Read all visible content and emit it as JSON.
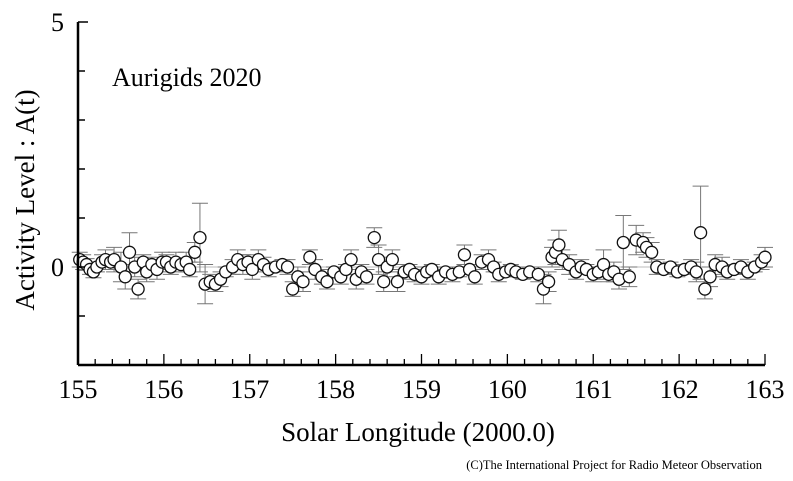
{
  "chart_data": {
    "type": "scatter",
    "title": "Aurigids 2020",
    "xlabel": "Solar Longitude (2000.0)",
    "ylabel": "Activity Level : A(t)",
    "credit": "(C)The International Project for Radio Meteor Observation",
    "xlim": [
      155,
      163
    ],
    "ylim": [
      -2,
      5
    ],
    "x_ticks": [
      "155",
      "156",
      "157",
      "158",
      "159",
      "160",
      "161",
      "162",
      "163"
    ],
    "y_tick_labels": [
      {
        "value": 5,
        "label": "5"
      },
      {
        "value": 0,
        "label": "0"
      }
    ],
    "grid": false,
    "error_bars": true,
    "marker": "open-circle",
    "colors": {
      "marker_stroke": "#111111",
      "marker_fill": "#ffffff",
      "error_bar": "#777777",
      "axis": "#000000"
    },
    "points": [
      [
        155.02,
        0.15,
        0.15
      ],
      [
        155.06,
        0.1,
        0.15
      ],
      [
        155.1,
        0.05,
        0.12
      ],
      [
        155.14,
        -0.05,
        0.1
      ],
      [
        155.18,
        -0.1,
        0.12
      ],
      [
        155.22,
        0.0,
        0.1
      ],
      [
        155.28,
        0.1,
        0.15
      ],
      [
        155.32,
        0.15,
        0.2
      ],
      [
        155.38,
        0.1,
        0.15
      ],
      [
        155.42,
        0.15,
        0.25
      ],
      [
        155.5,
        0.0,
        0.3
      ],
      [
        155.55,
        -0.2,
        0.25
      ],
      [
        155.6,
        0.3,
        0.4
      ],
      [
        155.66,
        0.0,
        0.2
      ],
      [
        155.7,
        -0.45,
        0.2
      ],
      [
        155.76,
        0.1,
        0.15
      ],
      [
        155.8,
        -0.1,
        0.2
      ],
      [
        155.86,
        0.05,
        0.15
      ],
      [
        155.92,
        -0.05,
        0.2
      ],
      [
        155.98,
        0.1,
        0.2
      ],
      [
        156.03,
        0.1,
        0.15
      ],
      [
        156.08,
        0.0,
        0.15
      ],
      [
        156.14,
        0.1,
        0.2
      ],
      [
        156.2,
        0.05,
        0.1
      ],
      [
        156.26,
        0.1,
        0.2
      ],
      [
        156.3,
        -0.05,
        0.15
      ],
      [
        156.36,
        0.3,
        0.2
      ],
      [
        156.42,
        0.6,
        0.7
      ],
      [
        156.48,
        -0.35,
        0.4
      ],
      [
        156.54,
        -0.3,
        0.15
      ],
      [
        156.6,
        -0.35,
        0.15
      ],
      [
        156.66,
        -0.25,
        0.15
      ],
      [
        156.72,
        -0.1,
        0.1
      ],
      [
        156.8,
        0.0,
        0.15
      ],
      [
        156.86,
        0.15,
        0.2
      ],
      [
        156.92,
        0.05,
        0.2
      ],
      [
        156.98,
        0.1,
        0.15
      ],
      [
        157.03,
        -0.05,
        0.2
      ],
      [
        157.1,
        0.15,
        0.2
      ],
      [
        157.16,
        0.05,
        0.15
      ],
      [
        157.22,
        -0.05,
        0.15
      ],
      [
        157.3,
        0.0,
        0.1
      ],
      [
        157.38,
        0.05,
        0.1
      ],
      [
        157.44,
        0.0,
        0.15
      ],
      [
        157.5,
        -0.45,
        0.15
      ],
      [
        157.56,
        -0.2,
        0.2
      ],
      [
        157.62,
        -0.3,
        0.2
      ],
      [
        157.7,
        0.2,
        0.15
      ],
      [
        157.76,
        -0.05,
        0.2
      ],
      [
        157.84,
        -0.2,
        0.15
      ],
      [
        157.9,
        -0.3,
        0.15
      ],
      [
        157.98,
        -0.1,
        0.1
      ],
      [
        158.06,
        -0.2,
        0.15
      ],
      [
        158.12,
        -0.05,
        0.1
      ],
      [
        158.18,
        0.15,
        0.2
      ],
      [
        158.24,
        -0.25,
        0.2
      ],
      [
        158.3,
        -0.1,
        0.15
      ],
      [
        158.36,
        -0.2,
        0.15
      ],
      [
        158.45,
        0.6,
        0.2
      ],
      [
        158.5,
        0.15,
        0.3
      ],
      [
        158.56,
        -0.3,
        0.2
      ],
      [
        158.6,
        0.0,
        0.2
      ],
      [
        158.66,
        0.15,
        0.2
      ],
      [
        158.72,
        -0.3,
        0.2
      ],
      [
        158.8,
        -0.1,
        0.15
      ],
      [
        158.86,
        -0.05,
        0.1
      ],
      [
        158.92,
        -0.15,
        0.15
      ],
      [
        159.0,
        -0.2,
        0.15
      ],
      [
        159.06,
        -0.1,
        0.1
      ],
      [
        159.12,
        -0.05,
        0.1
      ],
      [
        159.2,
        -0.2,
        0.15
      ],
      [
        159.28,
        -0.1,
        0.1
      ],
      [
        159.36,
        -0.15,
        0.15
      ],
      [
        159.44,
        -0.1,
        0.1
      ],
      [
        159.5,
        0.25,
        0.2
      ],
      [
        159.56,
        -0.05,
        0.1
      ],
      [
        159.62,
        -0.2,
        0.15
      ],
      [
        159.7,
        0.1,
        0.15
      ],
      [
        159.78,
        0.15,
        0.2
      ],
      [
        159.84,
        0.0,
        0.1
      ],
      [
        159.9,
        -0.15,
        0.15
      ],
      [
        159.98,
        -0.1,
        0.1
      ],
      [
        160.04,
        -0.05,
        0.1
      ],
      [
        160.1,
        -0.1,
        0.1
      ],
      [
        160.18,
        -0.15,
        0.1
      ],
      [
        160.26,
        -0.1,
        0.1
      ],
      [
        160.36,
        -0.15,
        0.15
      ],
      [
        160.42,
        -0.45,
        0.3
      ],
      [
        160.48,
        -0.3,
        0.2
      ],
      [
        160.52,
        0.2,
        0.2
      ],
      [
        160.56,
        0.3,
        0.25
      ],
      [
        160.6,
        0.45,
        0.3
      ],
      [
        160.64,
        0.15,
        0.2
      ],
      [
        160.72,
        0.05,
        0.2
      ],
      [
        160.8,
        -0.1,
        0.15
      ],
      [
        160.86,
        0.0,
        0.15
      ],
      [
        160.92,
        -0.05,
        0.1
      ],
      [
        161.0,
        -0.15,
        0.15
      ],
      [
        161.06,
        -0.1,
        0.1
      ],
      [
        161.12,
        0.05,
        0.3
      ],
      [
        161.18,
        -0.15,
        0.15
      ],
      [
        161.24,
        -0.1,
        0.2
      ],
      [
        161.3,
        -0.25,
        0.2
      ],
      [
        161.35,
        0.5,
        0.55
      ],
      [
        161.42,
        -0.2,
        0.2
      ],
      [
        161.5,
        0.55,
        0.3
      ],
      [
        161.58,
        0.5,
        0.2
      ],
      [
        161.62,
        0.4,
        0.2
      ],
      [
        161.68,
        0.3,
        0.2
      ],
      [
        161.74,
        0.0,
        0.15
      ],
      [
        161.82,
        -0.05,
        0.1
      ],
      [
        161.9,
        0.0,
        0.1
      ],
      [
        161.98,
        -0.1,
        0.1
      ],
      [
        162.06,
        -0.05,
        0.1
      ],
      [
        162.14,
        0.0,
        0.15
      ],
      [
        162.2,
        -0.1,
        0.2
      ],
      [
        162.25,
        0.7,
        0.95
      ],
      [
        162.3,
        -0.45,
        0.2
      ],
      [
        162.36,
        -0.2,
        0.2
      ],
      [
        162.42,
        0.05,
        0.2
      ],
      [
        162.5,
        0.0,
        0.2
      ],
      [
        162.56,
        -0.1,
        0.15
      ],
      [
        162.64,
        -0.05,
        0.1
      ],
      [
        162.72,
        0.0,
        0.15
      ],
      [
        162.8,
        -0.1,
        0.15
      ],
      [
        162.88,
        0.0,
        0.1
      ],
      [
        162.96,
        0.1,
        0.15
      ],
      [
        163.0,
        0.2,
        0.2
      ]
    ]
  }
}
